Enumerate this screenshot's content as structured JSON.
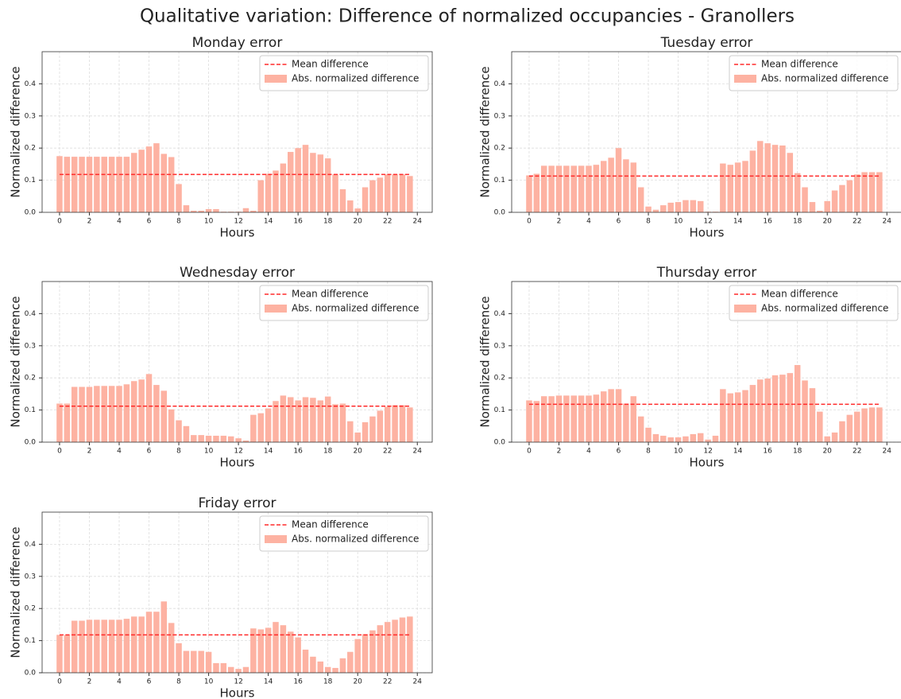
{
  "title": "Qualitative variation: Difference of normalized occupancies - Granollers",
  "chart_data": [
    {
      "type": "bar",
      "title": "Monday error",
      "xlabel": "Hours",
      "ylabel": "Normalized difference",
      "x": [
        0,
        0.5,
        1,
        1.5,
        2,
        2.5,
        3,
        3.5,
        4,
        4.5,
        5,
        5.5,
        6,
        6.5,
        7,
        7.5,
        8,
        8.5,
        9,
        9.5,
        10,
        10.5,
        11,
        11.5,
        12,
        12.5,
        13,
        13.5,
        14,
        14.5,
        15,
        15.5,
        16,
        16.5,
        17,
        17.5,
        18,
        18.5,
        19,
        19.5,
        20,
        20.5,
        21,
        21.5,
        22,
        22.5,
        23,
        23.5
      ],
      "series": [
        {
          "name": "Mean difference",
          "type": "line",
          "linestyle": "dashed",
          "color": "#ff2a2a",
          "x": [
            0,
            23.5
          ],
          "values": [
            0.118,
            0.118
          ]
        },
        {
          "name": "Abs. normalized difference",
          "type": "bar",
          "color": "#fdb2a2",
          "values": [
            0.175,
            0.173,
            0.173,
            0.173,
            0.173,
            0.173,
            0.173,
            0.173,
            0.173,
            0.173,
            0.185,
            0.195,
            0.205,
            0.215,
            0.182,
            0.172,
            0.088,
            0.022,
            0.005,
            0.005,
            0.01,
            0.01,
            0.002,
            0.002,
            0.002,
            0.013,
            0.005,
            0.1,
            0.12,
            0.13,
            0.152,
            0.188,
            0.2,
            0.21,
            0.185,
            0.18,
            0.168,
            0.118,
            0.072,
            0.037,
            0.012,
            0.078,
            0.1,
            0.108,
            0.118,
            0.118,
            0.118,
            0.113
          ]
        }
      ],
      "xlim": [
        -1.17,
        25.0
      ],
      "ylim": [
        0,
        0.5
      ],
      "xticks": [
        0,
        2,
        4,
        6,
        8,
        10,
        12,
        14,
        16,
        18,
        20,
        22,
        24
      ],
      "yticks": [
        {
          "value": 0,
          "label": "0.0"
        },
        {
          "value": 0.1,
          "label": "0.1"
        },
        {
          "value": 0.2,
          "label": "0.2"
        },
        {
          "value": 0.3,
          "label": "0.3"
        },
        {
          "value": 0.4,
          "label": "0.4"
        }
      ],
      "grid": true,
      "legend": "upper right"
    },
    {
      "type": "bar",
      "title": "Tuesday error",
      "xlabel": "Hours",
      "ylabel": "Normalized difference",
      "x": [
        0,
        0.5,
        1,
        1.5,
        2,
        2.5,
        3,
        3.5,
        4,
        4.5,
        5,
        5.5,
        6,
        6.5,
        7,
        7.5,
        8,
        8.5,
        9,
        9.5,
        10,
        10.5,
        11,
        11.5,
        12,
        12.5,
        13,
        13.5,
        14,
        14.5,
        15,
        15.5,
        16,
        16.5,
        17,
        17.5,
        18,
        18.5,
        19,
        19.5,
        20,
        20.5,
        21,
        21.5,
        22,
        22.5,
        23,
        23.5
      ],
      "series": [
        {
          "name": "Mean difference",
          "type": "line",
          "linestyle": "dashed",
          "color": "#ff2a2a",
          "x": [
            0,
            23.5
          ],
          "values": [
            0.113,
            0.113
          ]
        },
        {
          "name": "Abs. normalized difference",
          "type": "bar",
          "color": "#fdb2a2",
          "values": [
            0.115,
            0.12,
            0.145,
            0.145,
            0.145,
            0.145,
            0.145,
            0.145,
            0.145,
            0.148,
            0.16,
            0.17,
            0.2,
            0.165,
            0.155,
            0.078,
            0.018,
            0.008,
            0.022,
            0.03,
            0.032,
            0.038,
            0.038,
            0.035,
            0.002,
            0.002,
            0.152,
            0.148,
            0.155,
            0.16,
            0.192,
            0.222,
            0.215,
            0.21,
            0.208,
            0.185,
            0.122,
            0.078,
            0.032,
            0.005,
            0.035,
            0.068,
            0.085,
            0.1,
            0.118,
            0.125,
            0.125,
            0.125
          ]
        }
      ],
      "xlim": [
        -1.17,
        25.0
      ],
      "ylim": [
        0,
        0.5
      ],
      "xticks": [
        0,
        2,
        4,
        6,
        8,
        10,
        12,
        14,
        16,
        18,
        20,
        22,
        24
      ],
      "yticks": [
        {
          "value": 0,
          "label": "0.0"
        },
        {
          "value": 0.1,
          "label": "0.1"
        },
        {
          "value": 0.2,
          "label": "0.2"
        },
        {
          "value": 0.3,
          "label": "0.3"
        },
        {
          "value": 0.4,
          "label": "0.4"
        }
      ],
      "grid": true,
      "legend": "upper right"
    },
    {
      "type": "bar",
      "title": "Wednesday error",
      "xlabel": "Hours",
      "ylabel": "Normalized difference",
      "x": [
        0,
        0.5,
        1,
        1.5,
        2,
        2.5,
        3,
        3.5,
        4,
        4.5,
        5,
        5.5,
        6,
        6.5,
        7,
        7.5,
        8,
        8.5,
        9,
        9.5,
        10,
        10.5,
        11,
        11.5,
        12,
        12.5,
        13,
        13.5,
        14,
        14.5,
        15,
        15.5,
        16,
        16.5,
        17,
        17.5,
        18,
        18.5,
        19,
        19.5,
        20,
        20.5,
        21,
        21.5,
        22,
        22.5,
        23,
        23.5
      ],
      "series": [
        {
          "name": "Mean difference",
          "type": "line",
          "linestyle": "dashed",
          "color": "#ff2a2a",
          "x": [
            0,
            23.5
          ],
          "values": [
            0.112,
            0.112
          ]
        },
        {
          "name": "Abs. normalized difference",
          "type": "bar",
          "color": "#fdb2a2",
          "values": [
            0.12,
            0.12,
            0.172,
            0.172,
            0.172,
            0.175,
            0.175,
            0.175,
            0.175,
            0.18,
            0.19,
            0.195,
            0.212,
            0.178,
            0.16,
            0.102,
            0.068,
            0.05,
            0.022,
            0.022,
            0.02,
            0.02,
            0.02,
            0.018,
            0.012,
            0.005,
            0.085,
            0.09,
            0.105,
            0.128,
            0.145,
            0.14,
            0.13,
            0.14,
            0.138,
            0.13,
            0.142,
            0.118,
            0.12,
            0.065,
            0.03,
            0.062,
            0.08,
            0.098,
            0.11,
            0.115,
            0.115,
            0.108
          ]
        }
      ],
      "xlim": [
        -1.17,
        25.0
      ],
      "ylim": [
        0,
        0.5
      ],
      "xticks": [
        0,
        2,
        4,
        6,
        8,
        10,
        12,
        14,
        16,
        18,
        20,
        22,
        24
      ],
      "yticks": [
        {
          "value": 0,
          "label": "0.0"
        },
        {
          "value": 0.1,
          "label": "0.1"
        },
        {
          "value": 0.2,
          "label": "0.2"
        },
        {
          "value": 0.3,
          "label": "0.3"
        },
        {
          "value": 0.4,
          "label": "0.4"
        }
      ],
      "grid": true,
      "legend": "upper right"
    },
    {
      "type": "bar",
      "title": "Thursday error",
      "xlabel": "Hours",
      "ylabel": "Normalized difference",
      "x": [
        0,
        0.5,
        1,
        1.5,
        2,
        2.5,
        3,
        3.5,
        4,
        4.5,
        5,
        5.5,
        6,
        6.5,
        7,
        7.5,
        8,
        8.5,
        9,
        9.5,
        10,
        10.5,
        11,
        11.5,
        12,
        12.5,
        13,
        13.5,
        14,
        14.5,
        15,
        15.5,
        16,
        16.5,
        17,
        17.5,
        18,
        18.5,
        19,
        19.5,
        20,
        20.5,
        21,
        21.5,
        22,
        22.5,
        23,
        23.5
      ],
      "series": [
        {
          "name": "Mean difference",
          "type": "line",
          "linestyle": "dashed",
          "color": "#ff2a2a",
          "x": [
            0,
            23.5
          ],
          "values": [
            0.118,
            0.118
          ]
        },
        {
          "name": "Abs. normalized difference",
          "type": "bar",
          "color": "#fdb2a2",
          "values": [
            0.13,
            0.128,
            0.143,
            0.143,
            0.145,
            0.145,
            0.145,
            0.145,
            0.145,
            0.148,
            0.158,
            0.165,
            0.165,
            0.12,
            0.143,
            0.08,
            0.045,
            0.025,
            0.02,
            0.015,
            0.015,
            0.018,
            0.025,
            0.028,
            0.008,
            0.02,
            0.165,
            0.152,
            0.155,
            0.162,
            0.178,
            0.195,
            0.198,
            0.208,
            0.21,
            0.215,
            0.24,
            0.192,
            0.168,
            0.095,
            0.018,
            0.03,
            0.065,
            0.085,
            0.095,
            0.105,
            0.108,
            0.108
          ]
        }
      ],
      "xlim": [
        -1.17,
        25.0
      ],
      "ylim": [
        0,
        0.5
      ],
      "xticks": [
        0,
        2,
        4,
        6,
        8,
        10,
        12,
        14,
        16,
        18,
        20,
        22,
        24
      ],
      "yticks": [
        {
          "value": 0,
          "label": "0.0"
        },
        {
          "value": 0.1,
          "label": "0.1"
        },
        {
          "value": 0.2,
          "label": "0.2"
        },
        {
          "value": 0.3,
          "label": "0.3"
        },
        {
          "value": 0.4,
          "label": "0.4"
        }
      ],
      "grid": true,
      "legend": "upper right"
    },
    {
      "type": "bar",
      "title": "Friday error",
      "xlabel": "Hours",
      "ylabel": "Normalized difference",
      "x": [
        0,
        0.5,
        1,
        1.5,
        2,
        2.5,
        3,
        3.5,
        4,
        4.5,
        5,
        5.5,
        6,
        6.5,
        7,
        7.5,
        8,
        8.5,
        9,
        9.5,
        10,
        10.5,
        11,
        11.5,
        12,
        12.5,
        13,
        13.5,
        14,
        14.5,
        15,
        15.5,
        16,
        16.5,
        17,
        17.5,
        18,
        18.5,
        19,
        19.5,
        20,
        20.5,
        21,
        21.5,
        22,
        22.5,
        23,
        23.5
      ],
      "series": [
        {
          "name": "Mean difference",
          "type": "line",
          "linestyle": "dashed",
          "color": "#ff2a2a",
          "x": [
            0,
            23.5
          ],
          "values": [
            0.118,
            0.118
          ]
        },
        {
          "name": "Abs. normalized difference",
          "type": "bar",
          "color": "#fdb2a2",
          "values": [
            0.118,
            0.118,
            0.162,
            0.162,
            0.165,
            0.165,
            0.165,
            0.165,
            0.165,
            0.168,
            0.175,
            0.175,
            0.19,
            0.19,
            0.222,
            0.155,
            0.092,
            0.068,
            0.068,
            0.068,
            0.065,
            0.03,
            0.03,
            0.018,
            0.012,
            0.018,
            0.138,
            0.135,
            0.14,
            0.158,
            0.148,
            0.128,
            0.11,
            0.072,
            0.05,
            0.035,
            0.018,
            0.015,
            0.045,
            0.065,
            0.105,
            0.12,
            0.132,
            0.148,
            0.158,
            0.165,
            0.172,
            0.175
          ]
        }
      ],
      "xlim": [
        -1.17,
        25.0
      ],
      "ylim": [
        0,
        0.5
      ],
      "xticks": [
        0,
        2,
        4,
        6,
        8,
        10,
        12,
        14,
        16,
        18,
        20,
        22,
        24
      ],
      "yticks": [
        {
          "value": 0,
          "label": "0.0"
        },
        {
          "value": 0.1,
          "label": "0.1"
        },
        {
          "value": 0.2,
          "label": "0.2"
        },
        {
          "value": 0.3,
          "label": "0.3"
        },
        {
          "value": 0.4,
          "label": "0.4"
        }
      ],
      "grid": true,
      "legend": "upper right"
    }
  ]
}
